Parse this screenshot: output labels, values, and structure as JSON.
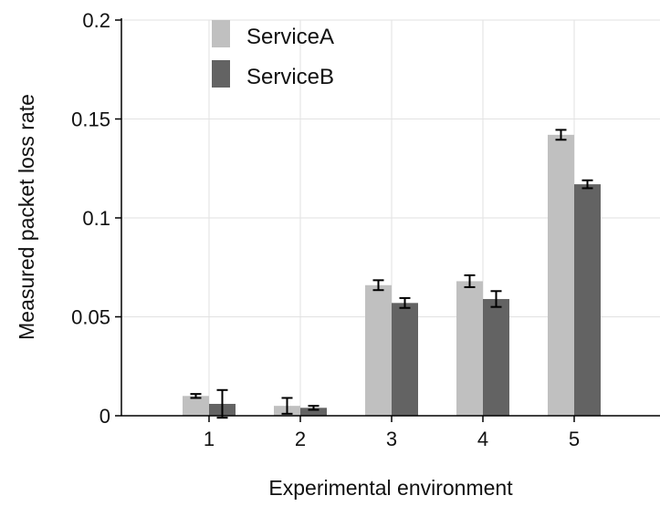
{
  "chart_data": {
    "type": "bar",
    "title": "",
    "xlabel": "Experimental environment",
    "ylabel": "Measured packet loss rate",
    "categories": [
      "1",
      "2",
      "3",
      "4",
      "5"
    ],
    "ylim": [
      0,
      0.2
    ],
    "yticks": [
      0,
      0.05,
      0.1,
      0.15,
      0.2
    ],
    "ytick_labels": [
      "0",
      "0.05",
      "0.1",
      "0.15",
      "0.2"
    ],
    "grid": true,
    "legend_position": "top-left",
    "series": [
      {
        "name": "ServiceA",
        "color": "#c0c0c0",
        "values": [
          0.01,
          0.005,
          0.066,
          0.068,
          0.142
        ],
        "errors": [
          0.001,
          0.004,
          0.0025,
          0.003,
          0.0025
        ]
      },
      {
        "name": "ServiceB",
        "color": "#636363",
        "values": [
          0.006,
          0.004,
          0.057,
          0.059,
          0.117
        ],
        "errors": [
          0.007,
          0.001,
          0.0025,
          0.004,
          0.002
        ]
      }
    ]
  }
}
